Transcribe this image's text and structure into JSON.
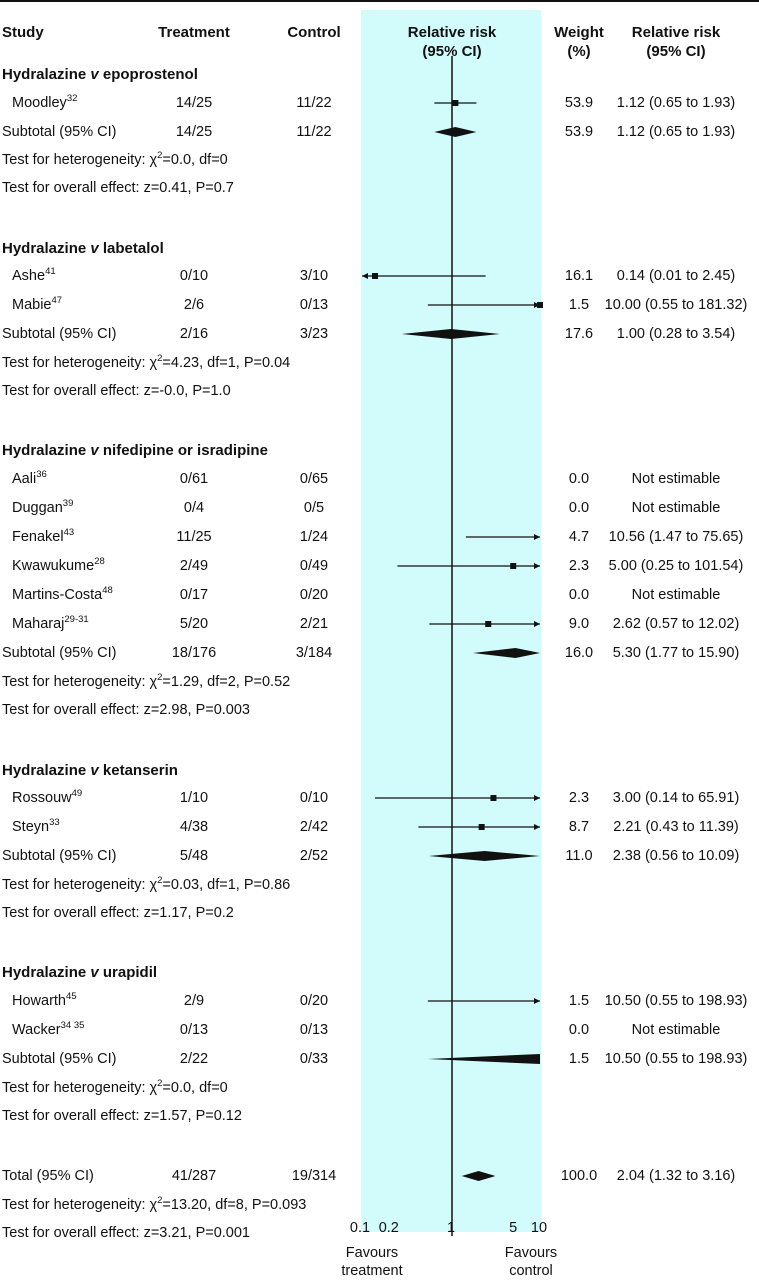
{
  "chart_data": {
    "type": "forest",
    "x_scale": "log",
    "xlim": [
      0.1,
      10
    ],
    "x_ticks": [
      "0.1",
      "0.2",
      "1",
      "5",
      "10"
    ],
    "reference_line": 1,
    "headers": {
      "study": "Study",
      "treatment": "Treatment",
      "control": "Control",
      "rr_line1": "Relative risk",
      "rr_line2": "(95% CI)",
      "weight_line1": "Weight",
      "weight_line2": "(%)",
      "rrci_line1": "Relative risk",
      "rrci_line2": "(95% CI)"
    },
    "favours_left": [
      "Favours",
      "treatment"
    ],
    "favours_right": [
      "Favours",
      "control"
    ],
    "colors": {
      "shade": "#d2fbfb",
      "ink": "#111111"
    },
    "groups": [
      {
        "prefix": "Hydralazine ",
        "v": "v",
        "suffix": " epoprostenol",
        "studies": [
          {
            "name": "Moodley",
            "ref": "32",
            "treatment": "14/25",
            "control": "11/22",
            "rr": 1.12,
            "lo": 0.65,
            "hi": 1.93,
            "weight": "53.9",
            "rr_text": "1.12 (0.65 to 1.93)"
          }
        ],
        "subtotal": {
          "label": "Subtotal (95% CI)",
          "treatment": "14/25",
          "control": "11/22",
          "rr": 1.12,
          "lo": 0.65,
          "hi": 1.93,
          "weight": "53.9",
          "rr_text": "1.12 (0.65 to 1.93)"
        },
        "heterogeneity": {
          "pre": "Test for heterogeneity: ",
          "chi": "χ",
          "post": "=0.0, df=0"
        },
        "overall": "Test for overall effect: z=0.41, P=0.7"
      },
      {
        "prefix": "Hydralazine ",
        "v": "v",
        "suffix": " labetalol",
        "studies": [
          {
            "name": "Ashe",
            "ref": "41",
            "treatment": "0/10",
            "control": "3/10",
            "rr": 0.14,
            "lo": 0.01,
            "hi": 2.45,
            "weight": "16.1",
            "rr_text": "0.14 (0.01 to 2.45)"
          },
          {
            "name": "Mabie",
            "ref": "47",
            "treatment": "2/6",
            "control": "0/13",
            "rr": 10.0,
            "lo": 0.55,
            "hi": 181.32,
            "weight": "1.5",
            "rr_text": "10.00 (0.55 to 181.32)"
          }
        ],
        "subtotal": {
          "label": "Subtotal (95% CI)",
          "treatment": "2/16",
          "control": "3/23",
          "rr": 1.0,
          "lo": 0.28,
          "hi": 3.54,
          "weight": "17.6",
          "rr_text": "1.00 (0.28 to 3.54)"
        },
        "heterogeneity": {
          "pre": "Test for heterogeneity: ",
          "chi": "χ",
          "post": "=4.23, df=1, P=0.04"
        },
        "overall": "Test for overall effect: z=-0.0, P=1.0"
      },
      {
        "prefix": "Hydralazine ",
        "v": "v",
        "suffix": " nifedipine or isradipine",
        "studies": [
          {
            "name": "Aali",
            "ref": "36",
            "treatment": "0/61",
            "control": "0/65",
            "rr": null,
            "lo": null,
            "hi": null,
            "weight": "0.0",
            "rr_text": "Not estimable"
          },
          {
            "name": "Duggan",
            "ref": "39",
            "treatment": "0/4",
            "control": "0/5",
            "rr": null,
            "lo": null,
            "hi": null,
            "weight": "0.0",
            "rr_text": "Not estimable"
          },
          {
            "name": "Fenakel",
            "ref": "43",
            "treatment": "11/25",
            "control": "1/24",
            "rr": 10.56,
            "lo": 1.47,
            "hi": 75.65,
            "weight": "4.7",
            "rr_text": "10.56 (1.47 to 75.65)"
          },
          {
            "name": "Kwawukume",
            "ref": "28",
            "treatment": "2/49",
            "control": "0/49",
            "rr": 5.0,
            "lo": 0.25,
            "hi": 101.54,
            "weight": "2.3",
            "rr_text": "5.00 (0.25 to 101.54)"
          },
          {
            "name": "Martins-Costa",
            "ref": "48",
            "treatment": "0/17",
            "control": "0/20",
            "rr": null,
            "lo": null,
            "hi": null,
            "weight": "0.0",
            "rr_text": "Not estimable"
          },
          {
            "name": "Maharaj",
            "ref": "29-31",
            "treatment": "5/20",
            "control": "2/21",
            "rr": 2.62,
            "lo": 0.57,
            "hi": 12.02,
            "weight": "9.0",
            "rr_text": "2.62 (0.57 to 12.02)"
          }
        ],
        "subtotal": {
          "label": "Subtotal (95% CI)",
          "treatment": "18/176",
          "control": "3/184",
          "rr": 5.3,
          "lo": 1.77,
          "hi": 15.9,
          "weight": "16.0",
          "rr_text": "5.30 (1.77 to 15.90)"
        },
        "heterogeneity": {
          "pre": "Test for heterogeneity: ",
          "chi": "χ",
          "post": "=1.29, df=2, P=0.52"
        },
        "overall": "Test for overall effect: z=2.98, P=0.003"
      },
      {
        "prefix": "Hydralazine ",
        "v": "v",
        "suffix": " ketanserin",
        "studies": [
          {
            "name": "Rossouw",
            "ref": "49",
            "treatment": "1/10",
            "control": "0/10",
            "rr": 3.0,
            "lo": 0.14,
            "hi": 65.91,
            "weight": "2.3",
            "rr_text": "3.00 (0.14 to 65.91)"
          },
          {
            "name": "Steyn",
            "ref": "33",
            "treatment": "4/38",
            "control": "2/42",
            "rr": 2.21,
            "lo": 0.43,
            "hi": 11.39,
            "weight": "8.7",
            "rr_text": "2.21 (0.43 to 11.39)"
          }
        ],
        "subtotal": {
          "label": "Subtotal (95% CI)",
          "treatment": "5/48",
          "control": "2/52",
          "rr": 2.38,
          "lo": 0.56,
          "hi": 10.09,
          "weight": "11.0",
          "rr_text": "2.38 (0.56 to 10.09)"
        },
        "heterogeneity": {
          "pre": "Test for heterogeneity: ",
          "chi": "χ",
          "post": "=0.03, df=1, P=0.86"
        },
        "overall": "Test for overall effect: z=1.17, P=0.2"
      },
      {
        "prefix": "Hydralazine ",
        "v": "v",
        "suffix": " urapidil",
        "studies": [
          {
            "name": "Howarth",
            "ref": "45",
            "treatment": "2/9",
            "control": "0/20",
            "rr": 10.5,
            "lo": 0.55,
            "hi": 198.93,
            "weight": "1.5",
            "rr_text": "10.50 (0.55 to 198.93)"
          },
          {
            "name": "Wacker",
            "ref": "34 35",
            "treatment": "0/13",
            "control": "0/13",
            "rr": null,
            "lo": null,
            "hi": null,
            "weight": "0.0",
            "rr_text": "Not estimable"
          }
        ],
        "subtotal": {
          "label": "Subtotal (95% CI)",
          "treatment": "2/22",
          "control": "0/33",
          "rr": 10.5,
          "lo": 0.55,
          "hi": 198.93,
          "weight": "1.5",
          "rr_text": "10.50 (0.55 to 198.93)"
        },
        "heterogeneity": {
          "pre": "Test for heterogeneity: ",
          "chi": "χ",
          "post": "=0.0, df=0"
        },
        "overall": "Test for overall effect: z=1.57, P=0.12"
      }
    ],
    "total": {
      "label": "Total (95% CI)",
      "treatment": "41/287",
      "control": "19/314",
      "rr": 2.04,
      "lo": 1.32,
      "hi": 3.16,
      "weight": "100.0",
      "rr_text": "2.04 (1.32 to 3.16)",
      "heterogeneity": {
        "pre": "Test for heterogeneity: ",
        "chi": "χ",
        "post": "=13.20, df=8, P=0.093"
      },
      "overall": "Test for overall effect: z=3.21, P=0.001"
    }
  }
}
